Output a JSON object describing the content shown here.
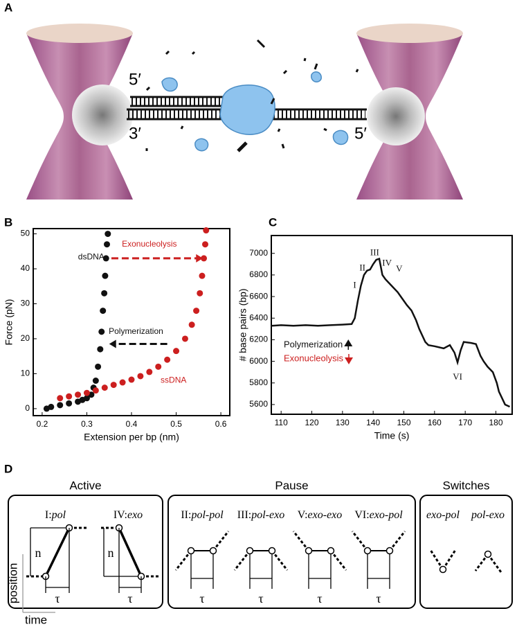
{
  "panel_labels": [
    "A",
    "B",
    "C",
    "D"
  ],
  "panel_a": {
    "labels": [
      "5′",
      "3′",
      "5′"
    ]
  },
  "chart_data": [
    {
      "type": "scatter",
      "x_label": "Extension per bp (nm)",
      "y_label": "Force (pN)",
      "xlim": [
        0.18,
        0.62
      ],
      "ylim": [
        -2,
        51.5
      ],
      "xticks": [
        0.2,
        0.3,
        0.4,
        0.5,
        0.6
      ],
      "yticks": [
        0,
        10,
        20,
        30,
        40,
        50
      ],
      "series": [
        {
          "name": "dsDNA",
          "color": "#111111",
          "x": [
            0.21,
            0.22,
            0.24,
            0.26,
            0.28,
            0.29,
            0.3,
            0.31,
            0.315,
            0.32,
            0.325,
            0.33,
            0.333,
            0.336,
            0.339,
            0.341,
            0.343,
            0.345,
            0.347
          ],
          "values": [
            0,
            0.5,
            1,
            1.5,
            2,
            2.5,
            3,
            4,
            6,
            8,
            12,
            17,
            22,
            28,
            33,
            38,
            43,
            47,
            50
          ]
        },
        {
          "name": "ssDNA",
          "color": "#cc1f1f",
          "x": [
            0.24,
            0.26,
            0.28,
            0.3,
            0.32,
            0.34,
            0.36,
            0.38,
            0.4,
            0.42,
            0.44,
            0.46,
            0.48,
            0.5,
            0.52,
            0.535,
            0.545,
            0.553,
            0.558,
            0.562,
            0.565,
            0.567
          ],
          "values": [
            3,
            3.5,
            4,
            4.5,
            5.2,
            6,
            6.8,
            7.5,
            8.3,
            9.3,
            10.5,
            12,
            14,
            16.5,
            20,
            24,
            28,
            33,
            38,
            43,
            47,
            51
          ]
        }
      ],
      "annotations": [
        {
          "text": "Exonucleolysis",
          "color": "#cc1f1f",
          "x": 0.44,
          "y": 47,
          "arrow": {
            "from": [
              0.355,
              43
            ],
            "to": [
              0.56,
              43
            ]
          }
        },
        {
          "text": "Polymerization",
          "color": "#111111",
          "x": 0.41,
          "y": 22,
          "arrow": {
            "from": [
              0.48,
              18.5
            ],
            "to": [
              0.35,
              18.5
            ]
          }
        }
      ]
    },
    {
      "type": "line",
      "x_label": "Time (s)",
      "y_label": "# base pairs (bp)",
      "xlim": [
        106.8,
        185.3
      ],
      "ylim": [
        5510,
        7165
      ],
      "xticks": [
        110,
        120,
        130,
        140,
        150,
        160,
        170,
        180
      ],
      "yticks": [
        5600,
        5800,
        6000,
        6200,
        6400,
        6600,
        6800,
        7000
      ],
      "x": [
        107,
        110,
        114,
        118,
        122,
        126,
        130,
        133,
        134,
        135,
        136,
        137,
        138,
        139,
        140,
        141,
        142,
        143,
        144,
        146,
        148,
        149,
        151,
        152.5,
        154,
        155,
        157,
        158,
        160,
        163,
        165,
        166.5,
        167.5,
        168.5,
        169.5,
        172,
        173.5,
        175,
        176,
        177.3,
        179,
        180.3,
        181,
        183,
        184.5
      ],
      "series": [
        {
          "color": "#111111",
          "values": [
            6330,
            6335,
            6330,
            6335,
            6330,
            6335,
            6340,
            6345,
            6400,
            6560,
            6700,
            6800,
            6840,
            6850,
            6900,
            6940,
            6950,
            6800,
            6760,
            6700,
            6640,
            6600,
            6520,
            6470,
            6380,
            6300,
            6180,
            6150,
            6140,
            6120,
            6150,
            6080,
            5990,
            6100,
            6180,
            6170,
            6160,
            6050,
            6000,
            5950,
            5900,
            5800,
            5720,
            5600,
            5580
          ]
        }
      ],
      "annotations": [
        {
          "text": "I",
          "color": "#111111",
          "x": 134,
          "y": 6700
        },
        {
          "text": "II",
          "color": "#111111",
          "x": 136.5,
          "y": 6860
        },
        {
          "text": "III",
          "color": "#111111",
          "x": 140.5,
          "y": 7000
        },
        {
          "text": "IV",
          "color": "#111111",
          "x": 144.5,
          "y": 6905
        },
        {
          "text": "V",
          "color": "#111111",
          "x": 148.5,
          "y": 6850
        },
        {
          "text": "VI",
          "color": "#111111",
          "x": 167.5,
          "y": 5850
        }
      ],
      "legend": [
        {
          "text": "Polymerization",
          "color": "#111111",
          "direction": "up"
        },
        {
          "text": "Exonucleolysis",
          "color": "#cc1f1f",
          "direction": "down"
        }
      ]
    }
  ],
  "panel_d": {
    "groups": [
      {
        "title": "Active",
        "items": [
          {
            "numeral": "I:",
            "state": "pol"
          },
          {
            "numeral": "IV:",
            "state": "exo"
          }
        ]
      },
      {
        "title": "Pause",
        "items": [
          {
            "numeral": "II:",
            "state": "pol-pol"
          },
          {
            "numeral": "III:",
            "state": "pol-exo"
          },
          {
            "numeral": "V:",
            "state": "exo-exo"
          },
          {
            "numeral": "VI:",
            "state": "exo-pol"
          }
        ]
      },
      {
        "title": "Switches",
        "items": [
          {
            "state": "exo-pol"
          },
          {
            "state": "pol-exo"
          }
        ]
      }
    ],
    "n_label": "n",
    "tau_label": "τ",
    "position_label": "position",
    "time_label": "time"
  }
}
